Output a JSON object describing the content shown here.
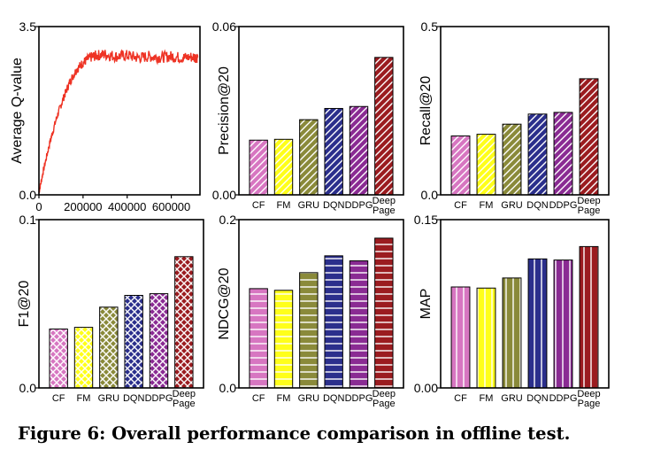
{
  "caption": "Figure 6: Overall performance comparison in offline test.",
  "colors": {
    "CF": "#d776c1",
    "FM": "#ffff1a",
    "GRU": "#8a8a3a",
    "DQN": "#2b2f8c",
    "DDPG": "#8a2b93",
    "DeepPage": "#9b1c20",
    "qline": "#ee3324"
  },
  "chart_data": [
    {
      "type": "line",
      "ylabel": "Average Q-value",
      "xlim": [
        0,
        730000
      ],
      "ylim": [
        0.0,
        3.5
      ],
      "xticks": [
        "0",
        "200000",
        "400000",
        "600000"
      ],
      "yticks": [
        "0.0",
        "3.5"
      ],
      "series": [
        {
          "x": [
            0,
            20000,
            50000,
            80000,
            110000,
            140000,
            170000,
            200000,
            230000,
            260000,
            300000,
            350000,
            400000,
            450000,
            500000,
            550000,
            600000,
            650000,
            700000,
            720000
          ],
          "values": [
            0.05,
            0.5,
            1.1,
            1.6,
            2.0,
            2.35,
            2.6,
            2.75,
            2.85,
            2.9,
            2.92,
            2.88,
            2.9,
            2.85,
            2.88,
            2.86,
            2.88,
            2.85,
            2.87,
            2.86
          ]
        }
      ]
    },
    {
      "type": "bar",
      "ylabel": "Precision@20",
      "categories": [
        "CF",
        "FM",
        "GRU",
        "DQN",
        "DDPG",
        "Deep Page"
      ],
      "values": [
        0.0195,
        0.0198,
        0.0268,
        0.0308,
        0.0315,
        0.049
      ],
      "ylim": [
        0.0,
        0.06
      ],
      "yticks": [
        "0.00",
        "0.06"
      ],
      "pattern": "diag"
    },
    {
      "type": "bar",
      "ylabel": "Recall@20",
      "categories": [
        "CF",
        "FM",
        "GRU",
        "DQN",
        "DDPG",
        "Deep Page"
      ],
      "values": [
        0.175,
        0.18,
        0.21,
        0.24,
        0.245,
        0.345
      ],
      "ylim": [
        0.0,
        0.5
      ],
      "yticks": [
        "0.0",
        "0.5"
      ],
      "pattern": "diag"
    },
    {
      "type": "bar",
      "ylabel": "F1@20",
      "categories": [
        "CF",
        "FM",
        "GRU",
        "DQN",
        "DDPG",
        "Deep Page"
      ],
      "values": [
        0.035,
        0.036,
        0.048,
        0.055,
        0.056,
        0.078
      ],
      "ylim": [
        0.0,
        0.1
      ],
      "yticks": [
        "0.0",
        "0.1"
      ],
      "pattern": "cross"
    },
    {
      "type": "bar",
      "ylabel": "NDCG@20",
      "categories": [
        "CF",
        "FM",
        "GRU",
        "DQN",
        "DDPG",
        "Deep Page"
      ],
      "values": [
        0.118,
        0.116,
        0.137,
        0.157,
        0.151,
        0.178
      ],
      "ylim": [
        0.0,
        0.2
      ],
      "yticks": [
        "0.0",
        "0.2"
      ],
      "pattern": "horiz"
    },
    {
      "type": "bar",
      "ylabel": "MAP",
      "categories": [
        "CF",
        "FM",
        "GRU",
        "DQN",
        "DDPG",
        "Deep Page"
      ],
      "values": [
        0.09,
        0.089,
        0.098,
        0.115,
        0.114,
        0.126
      ],
      "ylim": [
        0.0,
        0.15
      ],
      "yticks": [
        "0.00",
        "0.15"
      ],
      "pattern": "vert"
    }
  ]
}
